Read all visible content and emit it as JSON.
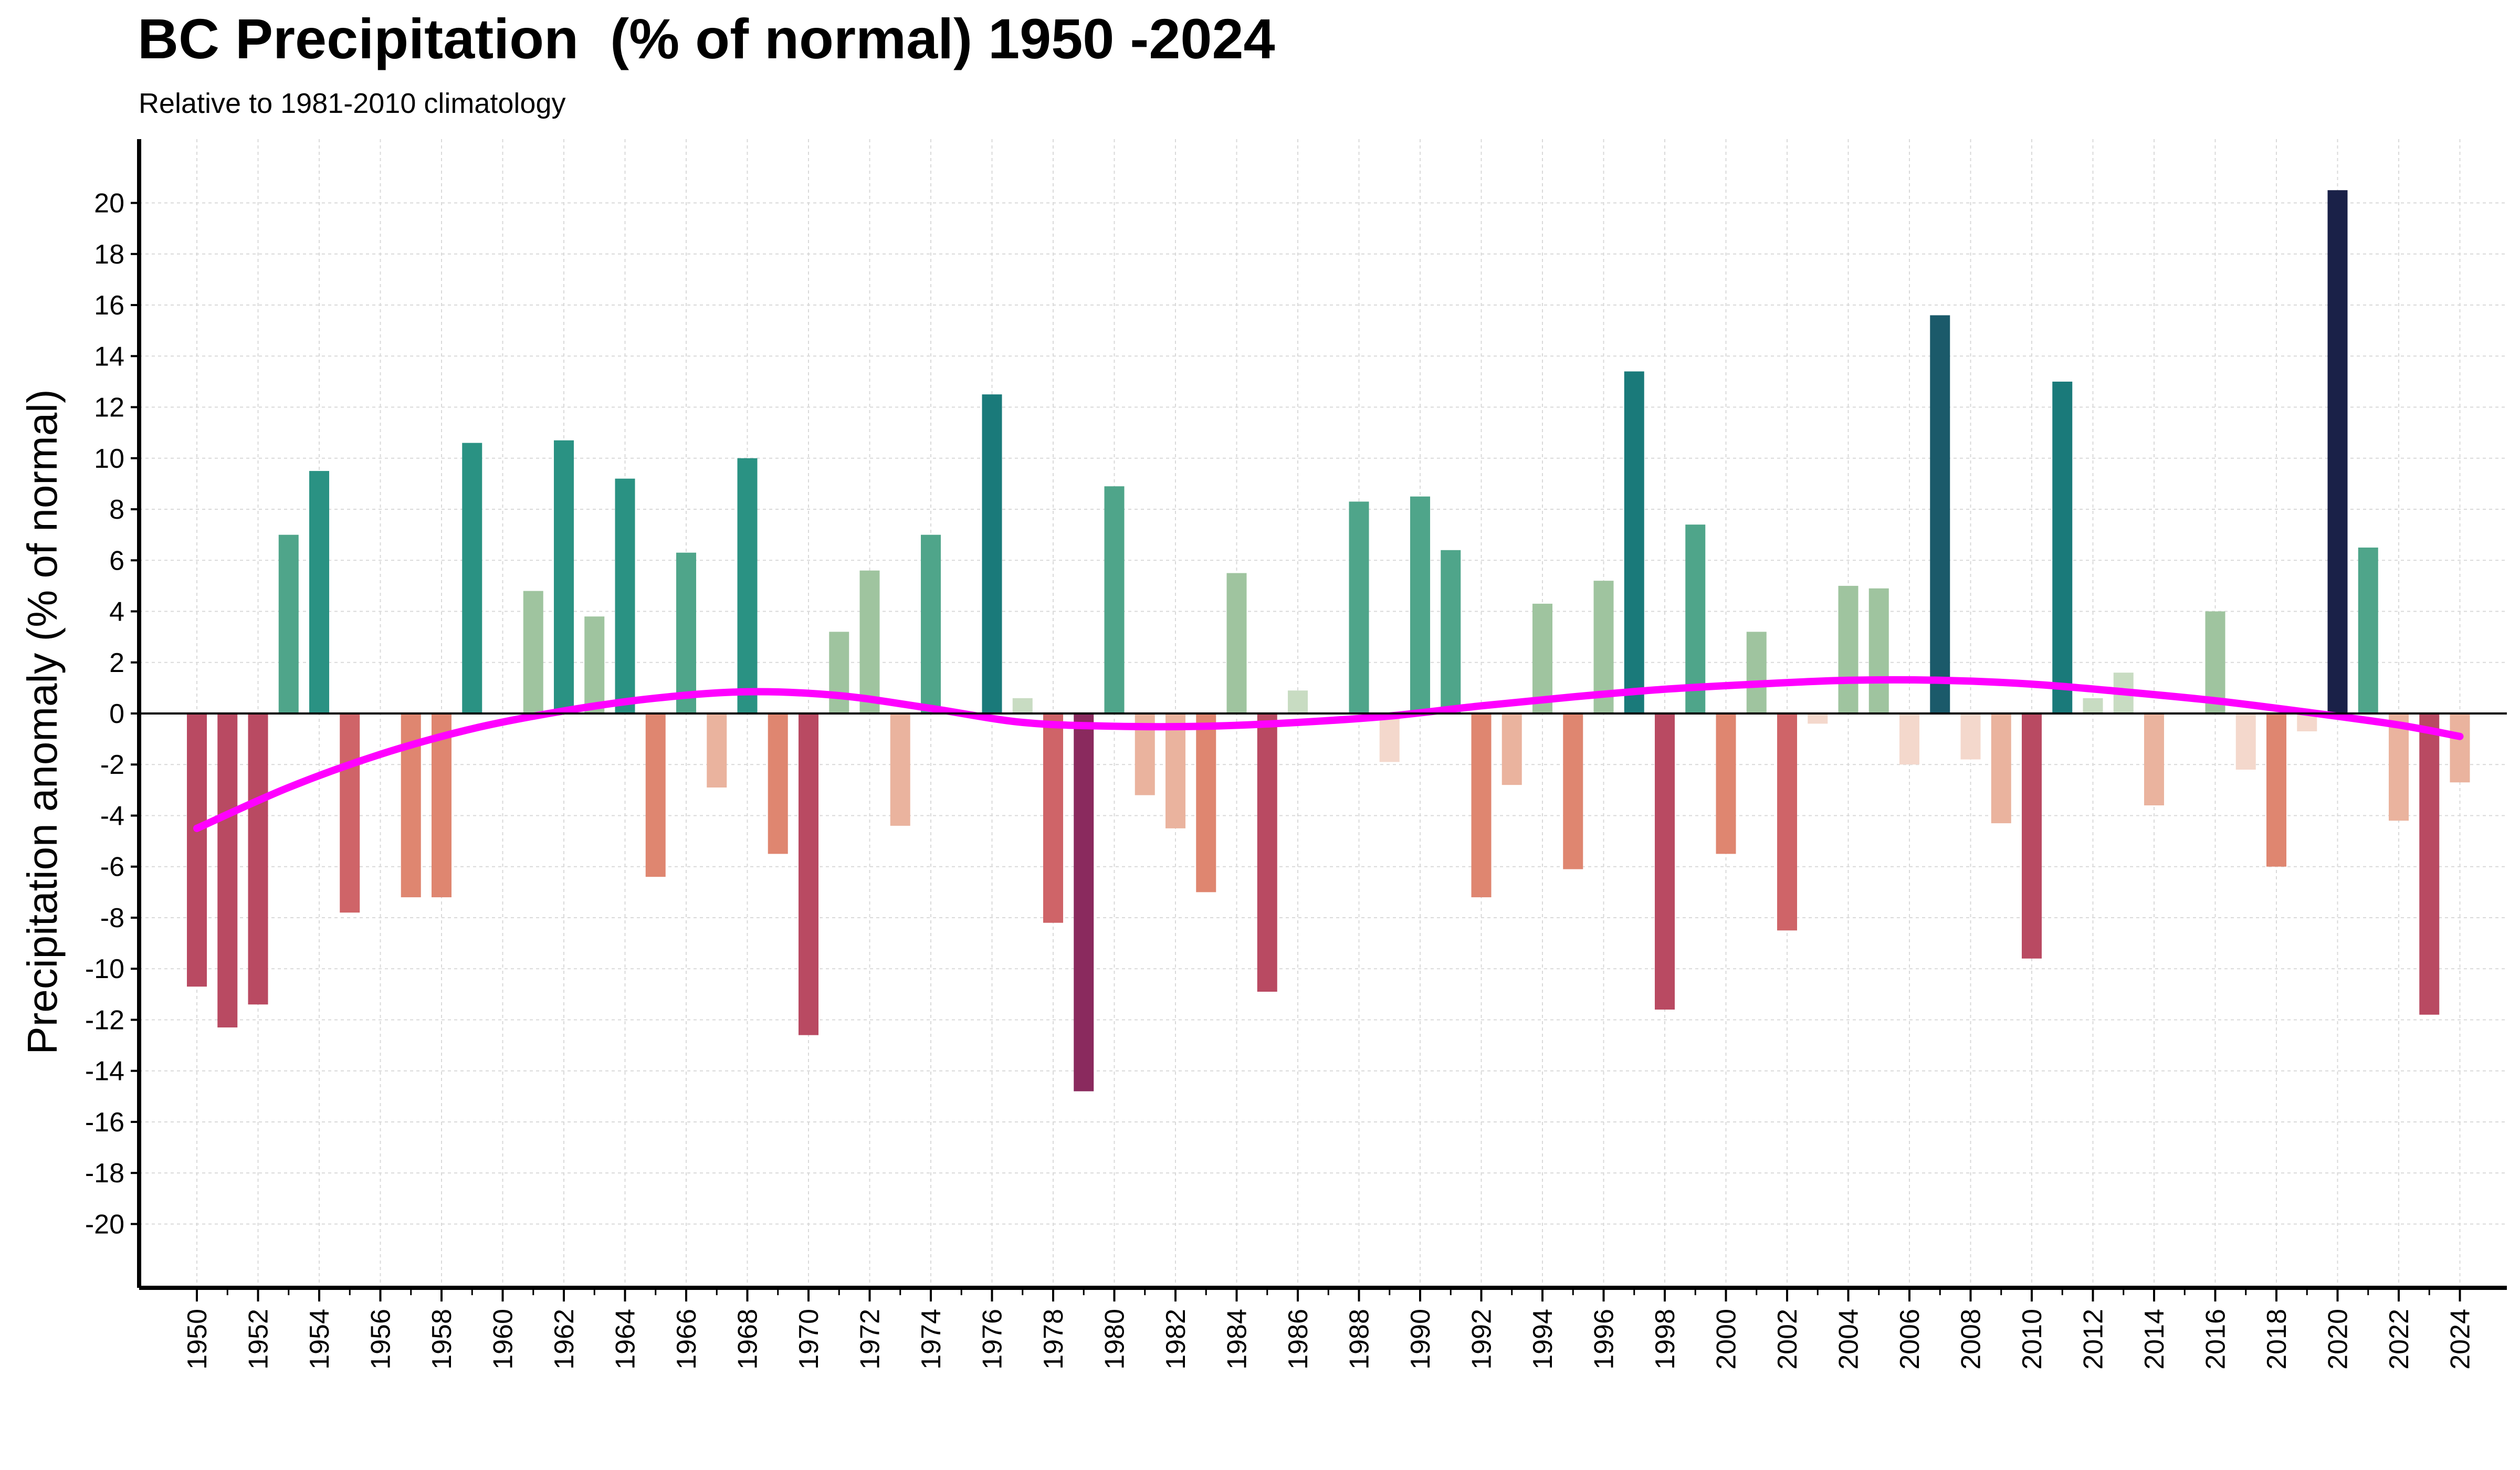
{
  "chart_data": {
    "type": "bar",
    "title": "BC Precipitation  (% of normal) 1950 -2024",
    "subtitle": "Relative to 1981-2010 climatology",
    "xlabel": "",
    "ylabel": "Precipitation anomaly (% of normal)",
    "ylim": [
      -22.5,
      22.5
    ],
    "yticks": [
      -20,
      -18,
      -16,
      -14,
      -12,
      -10,
      -8,
      -6,
      -4,
      -2,
      0,
      2,
      4,
      6,
      8,
      10,
      12,
      14,
      16,
      18,
      20
    ],
    "xticks": [
      1950,
      1952,
      1954,
      1956,
      1958,
      1960,
      1962,
      1964,
      1966,
      1968,
      1970,
      1972,
      1974,
      1976,
      1978,
      1980,
      1982,
      1984,
      1986,
      1988,
      1990,
      1992,
      1994,
      1996,
      1998,
      2000,
      2002,
      2004,
      2006,
      2008,
      2010,
      2012,
      2014,
      2016,
      2018,
      2020,
      2022,
      2024
    ],
    "grid": true,
    "categories": [
      1950,
      1951,
      1952,
      1953,
      1954,
      1955,
      1956,
      1957,
      1958,
      1959,
      1960,
      1961,
      1962,
      1963,
      1964,
      1965,
      1966,
      1967,
      1968,
      1969,
      1970,
      1971,
      1972,
      1973,
      1974,
      1975,
      1976,
      1977,
      1978,
      1979,
      1980,
      1981,
      1982,
      1983,
      1984,
      1985,
      1986,
      1987,
      1988,
      1989,
      1990,
      1991,
      1992,
      1993,
      1994,
      1995,
      1996,
      1997,
      1998,
      1999,
      2000,
      2001,
      2002,
      2003,
      2004,
      2005,
      2006,
      2007,
      2008,
      2009,
      2010,
      2011,
      2012,
      2013,
      2014,
      2015,
      2016,
      2017,
      2018,
      2019,
      2020,
      2021,
      2022,
      2023,
      2024
    ],
    "values": [
      -10.7,
      -12.3,
      -11.4,
      7.0,
      9.5,
      -7.8,
      0.0,
      -7.2,
      -7.2,
      10.6,
      0.0,
      4.8,
      10.7,
      3.8,
      9.2,
      -6.4,
      6.3,
      -2.9,
      10.0,
      -5.5,
      -12.6,
      3.2,
      5.6,
      -4.4,
      7.0,
      0.0,
      12.5,
      0.6,
      -8.2,
      -14.8,
      8.9,
      -3.2,
      -4.5,
      -7.0,
      5.5,
      -10.9,
      0.9,
      0.0,
      8.3,
      -1.9,
      8.5,
      6.4,
      -7.2,
      -2.8,
      4.3,
      -6.1,
      5.2,
      13.4,
      -11.6,
      7.4,
      -5.5,
      3.2,
      -8.5,
      -0.4,
      5.0,
      4.9,
      -2.0,
      15.6,
      -1.8,
      -4.3,
      -9.6,
      13.0,
      0.6,
      1.6,
      -3.6,
      0.0,
      4.0,
      -2.2,
      -6.0,
      -0.7,
      20.5,
      6.5,
      -4.2,
      -11.8,
      -2.7
    ],
    "trend_line": {
      "color": "#ff00ff",
      "x": [
        1950,
        1953,
        1956,
        1959,
        1962,
        1965,
        1968,
        1971,
        1974,
        1977,
        1980,
        1983,
        1986,
        1989,
        1992,
        1995,
        1998,
        2001,
        2004,
        2007,
        2010,
        2013,
        2016,
        2019,
        2022,
        2024
      ],
      "y": [
        -4.5,
        -2.9,
        -1.6,
        -0.6,
        0.1,
        0.6,
        0.85,
        0.7,
        0.2,
        -0.35,
        -0.5,
        -0.5,
        -0.35,
        -0.1,
        0.3,
        0.65,
        0.95,
        1.15,
        1.3,
        1.3,
        1.15,
        0.85,
        0.5,
        0.05,
        -0.45,
        -0.9
      ]
    },
    "color_scale": {
      "positive": [
        "#c8dcc2",
        "#9fc49f",
        "#4fa58a",
        "#2a9283",
        "#1a7a7a",
        "#1b5a6a",
        "#1a2148"
      ],
      "negative": [
        "#f4d8cc",
        "#eab39e",
        "#df8670",
        "#cf6468",
        "#b94a62",
        "#8a2a5e"
      ]
    }
  }
}
